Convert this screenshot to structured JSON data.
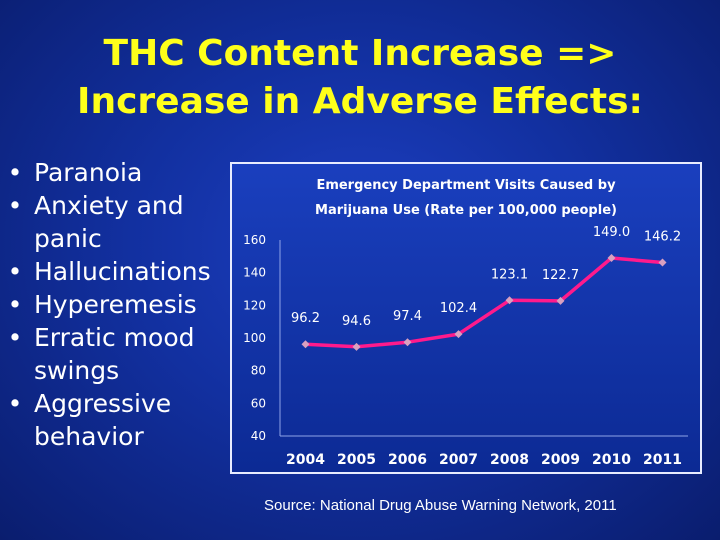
{
  "slide": {
    "title_line1": "THC Content Increase =>",
    "title_line2": "Increase in Adverse Effects:",
    "bullets": [
      {
        "lines": [
          "Paranoia"
        ]
      },
      {
        "lines": [
          "Anxiety and",
          "panic"
        ]
      },
      {
        "lines": [
          "Hallucinations"
        ]
      },
      {
        "lines": [
          "Hyperemesis"
        ]
      },
      {
        "lines": [
          "Erratic mood",
          "swings"
        ]
      },
      {
        "lines": [
          "Aggressive",
          "behavior"
        ]
      }
    ],
    "bullet_glyph": "•",
    "source": "Source: National Drug Abuse Warning Network, 2011"
  },
  "colors": {
    "title": "#ffff1a",
    "line": "#ff1a8c",
    "marker": "#d9a0c0",
    "text": "#ffffff",
    "background": "#1230a0"
  },
  "chart_data": {
    "type": "line",
    "title_lines": [
      "Emergency Department Visits Caused by",
      "Marijuana Use (Rate per 100,000 people)"
    ],
    "xlabel": "",
    "ylabel": "",
    "categories": [
      "2004",
      "2005",
      "2006",
      "2007",
      "2008",
      "2009",
      "2010",
      "2011"
    ],
    "series": [
      {
        "values": [
          96.2,
          94.6,
          97.4,
          102.4,
          123.1,
          122.7,
          149.0,
          146.2
        ]
      }
    ],
    "data_labels": [
      "96.2",
      "94.6",
      "97.4",
      "102.4",
      "123.1",
      "122.7",
      "149.0",
      "146.2"
    ],
    "ylim": [
      40,
      160
    ],
    "yticks": [
      40,
      60,
      80,
      100,
      120,
      140,
      160
    ],
    "grid": false,
    "legend": "none"
  }
}
